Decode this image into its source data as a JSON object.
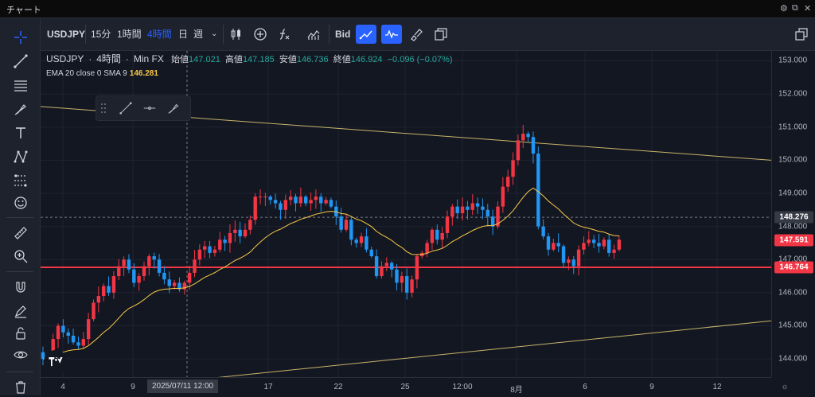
{
  "window": {
    "title": "チャート",
    "controls": [
      "⚙",
      "⧉",
      "✕"
    ]
  },
  "toolbar": {
    "symbol": "USDJPY",
    "intervals": [
      "15分",
      "1時間",
      "4時間",
      "日",
      "週"
    ],
    "active_interval": "4時間",
    "bid_label": "Bid",
    "icons": [
      "candles-icon",
      "add-indicator-icon",
      "fx-icon",
      "chart-type-icon",
      "bid-ask-icon",
      "line-active-icon",
      "wave-active-icon",
      "brush-icon",
      "layout-icon",
      "multi-window-icon"
    ]
  },
  "legend": {
    "symbol": "USDJPY",
    "interval": "4時間",
    "source": "Min FX",
    "open_label": "始値",
    "open": "147.021",
    "high_label": "高値",
    "high": "147.185",
    "low_label": "安値",
    "low": "146.736",
    "close_label": "終値",
    "close": "146.924",
    "change": "−0.096 (−0.07%)",
    "ema_label": "EMA 20 close 0 SMA 9",
    "ema_value": "146.281"
  },
  "colors": {
    "up": "#26a69a",
    "down": "#ef5350",
    "bull_candle": "#f23645",
    "bear_candle": "#2196f3",
    "ema": "#f7c948",
    "trend": "#c8b46a",
    "hline": "#f23645"
  },
  "chart_data": {
    "type": "candlestick",
    "symbol": "USDJPY",
    "y_ticks": [
      144.0,
      145.0,
      146.0,
      147.0,
      148.0,
      149.0,
      150.0,
      151.0,
      152.0,
      153.0
    ],
    "ylim": [
      143.45,
      153.3
    ],
    "x_ticks": [
      "4",
      "9",
      "17",
      "22",
      "25",
      "12:00",
      "8月",
      "6",
      "9",
      "12",
      "15"
    ],
    "crosshair_time": "2025/07/11   12:00",
    "price_labels": {
      "crosshair": "148.276",
      "last": "147.591",
      "hline": "146.764"
    },
    "horizontal_line": 146.764,
    "trendline_upper": [
      [
        0,
        151.62
      ],
      [
        918,
        150.0
      ]
    ],
    "trendline_lower": [
      [
        65,
        143.05
      ],
      [
        918,
        145.15
      ]
    ],
    "closes": [
      144.0,
      143.9,
      144.6,
      145.0,
      144.8,
      144.7,
      144.5,
      144.4,
      144.6,
      145.2,
      145.7,
      145.9,
      146.2,
      146.0,
      146.5,
      146.8,
      147.0,
      146.7,
      146.3,
      146.5,
      146.8,
      147.1,
      147.0,
      146.6,
      146.4,
      146.2,
      146.3,
      146.1,
      146.3,
      146.6,
      147.0,
      147.3,
      147.4,
      147.2,
      147.3,
      147.6,
      147.5,
      147.8,
      147.9,
      147.7,
      147.9,
      148.2,
      148.9,
      148.9,
      148.9,
      148.8,
      148.7,
      148.5,
      148.8,
      148.9,
      148.7,
      148.9,
      148.7,
      148.8,
      148.9,
      148.7,
      148.8,
      148.6,
      148.3,
      147.9,
      148.2,
      147.6,
      147.5,
      147.7,
      147.3,
      147.1,
      146.5,
      146.8,
      146.9,
      146.7,
      146.3,
      146.5,
      146.0,
      146.4,
      147.1,
      147.2,
      147.5,
      147.9,
      147.6,
      147.8,
      148.3,
      148.6,
      148.4,
      148.6,
      148.5,
      148.7,
      148.6,
      148.5,
      148.3,
      148.0,
      148.6,
      149.2,
      149.5,
      150.0,
      150.6,
      150.8,
      150.7,
      150.2,
      148.0,
      147.7,
      147.3,
      147.5,
      147.4,
      146.9,
      147.0,
      146.8,
      147.3,
      147.5,
      147.6,
      147.5,
      147.4,
      147.6,
      147.2,
      147.3,
      147.6
    ]
  }
}
